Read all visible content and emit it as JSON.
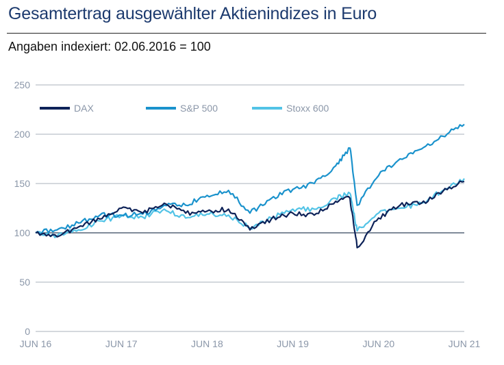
{
  "header": {
    "title": "Gesamtertrag ausgewählter Aktienindizes in Euro",
    "subtitle": "Angaben indexiert: 02.06.2016 = 100"
  },
  "chart_data": {
    "type": "line",
    "title": "Gesamtertrag ausgewählter Aktienindizes in Euro",
    "subtitle": "Angaben indexiert: 02.06.2016 = 100",
    "xlabel": "",
    "ylabel": "",
    "x_ticks": [
      "JUN 16",
      "JUN 17",
      "JUN 18",
      "JUN 19",
      "JUN 20",
      "JUN 21"
    ],
    "xlim": [
      "2016-06",
      "2021-06"
    ],
    "ylim": [
      0,
      250
    ],
    "y_ticks": [
      0,
      50,
      100,
      150,
      200,
      250
    ],
    "reference_line": 100,
    "grid": true,
    "legend_position": "top",
    "x": [
      "2016-06",
      "2016-09",
      "2016-12",
      "2017-03",
      "2017-06",
      "2017-09",
      "2017-12",
      "2018-03",
      "2018-06",
      "2018-09",
      "2018-12",
      "2019-03",
      "2019-06",
      "2019-09",
      "2019-12",
      "2020-02",
      "2020-03",
      "2020-06",
      "2020-09",
      "2020-12",
      "2021-03",
      "2021-06"
    ],
    "series": [
      {
        "name": "DAX",
        "color": "#0d2258",
        "values": [
          100,
          96,
          106,
          114,
          125,
          120,
          130,
          120,
          122,
          124,
          103,
          114,
          120,
          118,
          132,
          135,
          85,
          115,
          128,
          130,
          142,
          152
        ]
      },
      {
        "name": "S&P 500",
        "color": "#1a92cc",
        "values": [
          100,
          103,
          110,
          118,
          118,
          119,
          128,
          128,
          138,
          143,
          120,
          135,
          144,
          150,
          168,
          186,
          128,
          158,
          175,
          185,
          198,
          210
        ]
      },
      {
        "name": "Stoxx 600",
        "color": "#52c3e6",
        "values": [
          100,
          97,
          103,
          112,
          117,
          116,
          124,
          115,
          119,
          118,
          105,
          115,
          124,
          124,
          135,
          140,
          102,
          120,
          125,
          130,
          143,
          155
        ]
      }
    ]
  }
}
